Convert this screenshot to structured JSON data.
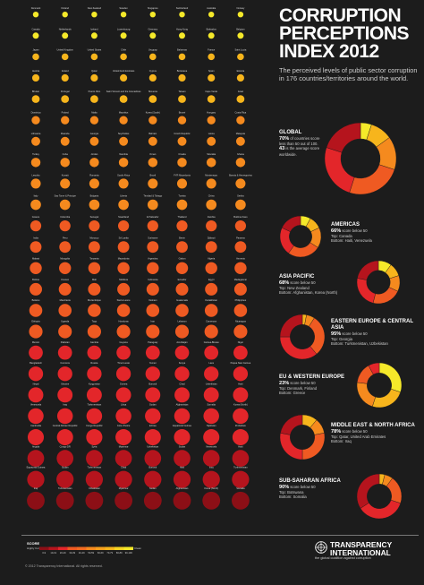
{
  "title": {
    "line1": "CORRUPTION",
    "line2": "PERCEPTIONS",
    "line3": "INDEX 2012"
  },
  "subtitle": "The perceived levels of public sector corruption in 176 countries/territories around the world.",
  "colors": {
    "background": "#1c1c1c",
    "very_clean": "#f5e92a",
    "clean": "#f7b51c",
    "mid": "#f58a1e",
    "mid_low": "#ef5a22",
    "low": "#e3262a",
    "very_low": "#b5141d",
    "highly_corrupt": "#8c0f16"
  },
  "chart_data": [
    {
      "type": "pie",
      "description": "Country grid: one dot per country, coloured by CPI score",
      "countries": [
        [
          "Denmark",
          "Finland",
          "New Zealand",
          "Sweden",
          "Singapore",
          "Switzerland",
          "Australia",
          "Norway"
        ],
        [
          "Canada",
          "Netherlands",
          "Iceland",
          "Luxembourg",
          "Germany",
          "Hong Kong",
          "Barbados",
          "Belgium"
        ],
        [
          "Japan",
          "United Kingdom",
          "United States",
          "Chile",
          "Uruguay",
          "Bahamas",
          "France",
          "Saint Lucia"
        ],
        [
          "Austria",
          "Ireland",
          "Qatar",
          "United Arab Emirates",
          "Cyprus",
          "Botswana",
          "Spain",
          "Estonia"
        ],
        [
          "Bhutan",
          "Portugal",
          "Puerto Rico",
          "Saint Vincent and the Grenadines",
          "Slovenia",
          "Taiwan",
          "Cape Verde",
          "Israel"
        ],
        [
          "Dominica",
          "Poland",
          "Malta",
          "Mauritius",
          "Korea (South)",
          "Brunei",
          "Hungary",
          "Costa Rica"
        ],
        [
          "Lithuania",
          "Rwanda",
          "Georgia",
          "Seychelles",
          "Bahrain",
          "Czech Republic",
          "Latvia",
          "Malaysia"
        ],
        [
          "Turkey",
          "Cuba",
          "Jordan",
          "Namibia",
          "Oman",
          "Croatia",
          "Slovakia",
          "Ghana"
        ],
        [
          "Lesotho",
          "Kuwait",
          "Romania",
          "South Africa",
          "Brazil",
          "FYR Macedonia",
          "Montenegro",
          "Bosnia & Herzegovina"
        ],
        [
          "Italy",
          "Sao Tome & Principe",
          "Bulgaria",
          "Liberia",
          "Trinidad & Tobago",
          "Tunisia",
          "China",
          "Serbia"
        ],
        [
          "Greece",
          "Colombia",
          "Senegal",
          "Swaziland",
          "El Salvador",
          "Thailand",
          "Zambia",
          "Burkina Faso"
        ],
        [
          "India",
          "Peru",
          "Morocco",
          "Sri Lanka",
          "Suriname",
          "Benin",
          "Djibouti",
          "Panama"
        ],
        [
          "Malawi",
          "Mongolia",
          "Tanzania",
          "Macedonia",
          "Argentina",
          "Gabon",
          "Algeria",
          "Armenia"
        ],
        [
          "Bolivia",
          "Kosovo",
          "Mali",
          "Moldova",
          "Indonesia",
          "Ecuador",
          "Egypt",
          "Madagascar"
        ],
        [
          "Belarus",
          "Mauritania",
          "Mozambique",
          "Sierra Leone",
          "Vietnam",
          "Guatemala",
          "Kazakhstan",
          "Philippines"
        ],
        [
          "Ethiopia",
          "Uganda",
          "Togo",
          "Honduras",
          "Iran",
          "Lebanon",
          "Cameroon",
          "Nicaragua"
        ],
        [
          "Mexico",
          "Pakistan",
          "Gambia",
          "Guyana",
          "Paraguay",
          "Azerbaijan",
          "Guinea-Bissau",
          "Niger"
        ],
        [
          "Bangladesh",
          "Comoros",
          "Russia",
          "Timor-Leste",
          "Yemen",
          "Kenya",
          "Laos",
          "Papua New Guinea"
        ],
        [
          "Nepal",
          "Ukraine",
          "Kyrgyzstan",
          "Guinea",
          "Burundi",
          "Chad",
          "Uzbekistan",
          "Haiti"
        ],
        [
          "Venezuela",
          "Iraq",
          "Turkmenistan",
          "Libya",
          "Sudan",
          "Afghanistan",
          "Somalia",
          "Korea (North)"
        ],
        [
          "Cambodia",
          "Central African Republic",
          "Congo Republic",
          "Cote d'Ivoire",
          "Eritrea",
          "Equatorial Guinea",
          "Tajikistan",
          "Zimbabwe"
        ],
        [
          "Angola",
          "Congo DR",
          "Syria",
          "Myanmar",
          "Uzbekistan",
          "Sudan",
          "Venezuela",
          "Haiti"
        ],
        [
          "Equatorial Guinea",
          "Sudan",
          "Turkmenistan",
          "Chad",
          "Burundi",
          "Haiti",
          "Iraq",
          "Turkmenistan"
        ],
        [
          "Iraq",
          "Turkmenistan",
          "Uzbekistan",
          "Myanmar",
          "Sudan",
          "Afghanistan",
          "Korea (North)",
          "Somalia"
        ]
      ]
    },
    {
      "type": "pie",
      "title": "GLOBAL",
      "stat1": "70%",
      "stat1_text": "of countries score less than 50 out of 100.",
      "stat2": "43",
      "stat2_text": "is the average score worldwide.",
      "slices": [
        0.05,
        0.1,
        0.15,
        0.25,
        0.25,
        0.2
      ]
    },
    {
      "type": "pie",
      "title": "AMERICAS",
      "stat": "66%",
      "stat_text": "score below 50",
      "top": "Canada",
      "bottom": "Haiti, Venezuela",
      "slices": [
        0.08,
        0.1,
        0.16,
        0.26,
        0.22,
        0.18
      ]
    },
    {
      "type": "pie",
      "title": "ASIA PACIFIC",
      "stat": "68%",
      "stat_text": "score below 50",
      "top": "New Zealand",
      "bottom": "Afghanistan, Korea (North)",
      "slices": [
        0.1,
        0.1,
        0.12,
        0.22,
        0.24,
        0.22
      ]
    },
    {
      "type": "pie",
      "title": "EASTERN EUROPE & CENTRAL ASIA",
      "stat": "95%",
      "stat_text": "score below 50",
      "top": "Georgia",
      "bottom": "Turkmenistan, Uzbekistan",
      "slices": [
        0.0,
        0.03,
        0.06,
        0.3,
        0.36,
        0.25
      ]
    },
    {
      "type": "pie",
      "title": "EU & WESTERN EUROPE",
      "stat": "23%",
      "stat_text": "score below 50",
      "top": "Denmark, Finland",
      "bottom": "Greece",
      "slices": [
        0.3,
        0.25,
        0.22,
        0.15,
        0.08,
        0.0
      ]
    },
    {
      "type": "pie",
      "title": "MIDDLE EAST & NORTH AFRICA",
      "stat": "78%",
      "stat_text": "score below 50",
      "top": "Qatar, United Arab Emirates",
      "bottom": "Iraq",
      "slices": [
        0.0,
        0.11,
        0.11,
        0.28,
        0.28,
        0.22
      ]
    },
    {
      "type": "pie",
      "title": "SUB-SAHARAN AFRICA",
      "stat": "90%",
      "stat_text": "score below 50",
      "top": "Botswana",
      "bottom": "Somalia",
      "slices": [
        0.0,
        0.04,
        0.06,
        0.2,
        0.36,
        0.34
      ]
    }
  ],
  "scale": {
    "title": "SCORE",
    "left_label": "Highly Corrupt",
    "right_label": "Very Clean",
    "ticks": [
      "0-9",
      "10-19",
      "20-29",
      "30-39",
      "40-49",
      "50-59",
      "60-69",
      "70-79",
      "80-89",
      "90-100"
    ]
  },
  "labels": {
    "top": "Top:",
    "bottom": "Bottom:"
  },
  "footer": {
    "org_line1": "TRANSPARENCY",
    "org_line2": "INTERNATIONAL",
    "tagline": "the global coalition against corruption",
    "copyright": "© 2012 Transparency International. All rights reserved."
  }
}
